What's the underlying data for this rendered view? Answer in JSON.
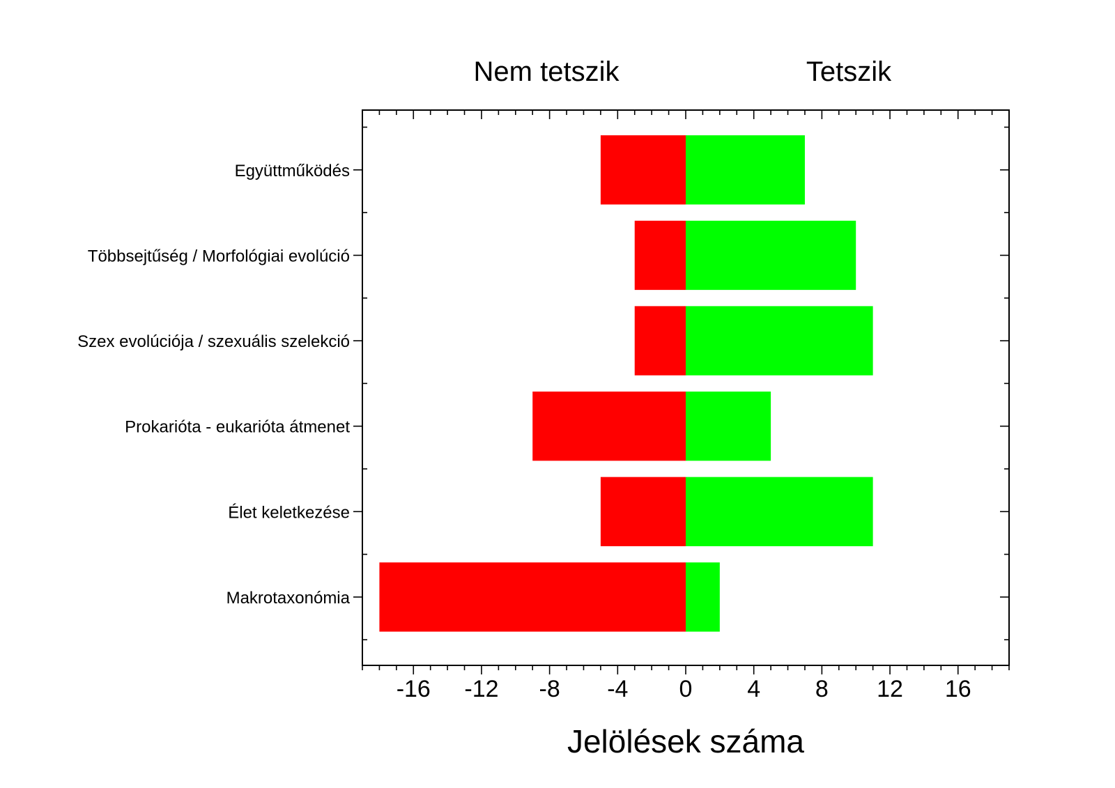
{
  "chart_data": {
    "type": "bar",
    "orientation": "horizontal",
    "stacking": "diverging",
    "headers": {
      "left": "Nem tetszik",
      "right": "Tetszik"
    },
    "xlabel": "Jelölések száma",
    "ylabel": "",
    "xlim": [
      -19,
      19
    ],
    "x_ticks": [
      -16,
      -12,
      -8,
      -4,
      0,
      4,
      8,
      12,
      16
    ],
    "x_tick_labels": [
      "-16",
      "-12",
      "-8",
      "-4",
      "0",
      "4",
      "8",
      "12",
      "16"
    ],
    "grid": false,
    "legend": "none",
    "categories": [
      "Együttműködés",
      "Többsejtűség / Morfológiai evolúció",
      "Szex evolúciója / szexuális szelekció",
      "Prokarióta - eukarióta átmenet",
      "Élet keletkezése",
      "Makrotaxonómia"
    ],
    "series": [
      {
        "values": [
          -5,
          -3,
          -3,
          -9,
          -5,
          -18
        ],
        "color": "#ff0000"
      },
      {
        "values": [
          7,
          10,
          11,
          5,
          11,
          2
        ],
        "color": "#00ff00"
      }
    ]
  }
}
